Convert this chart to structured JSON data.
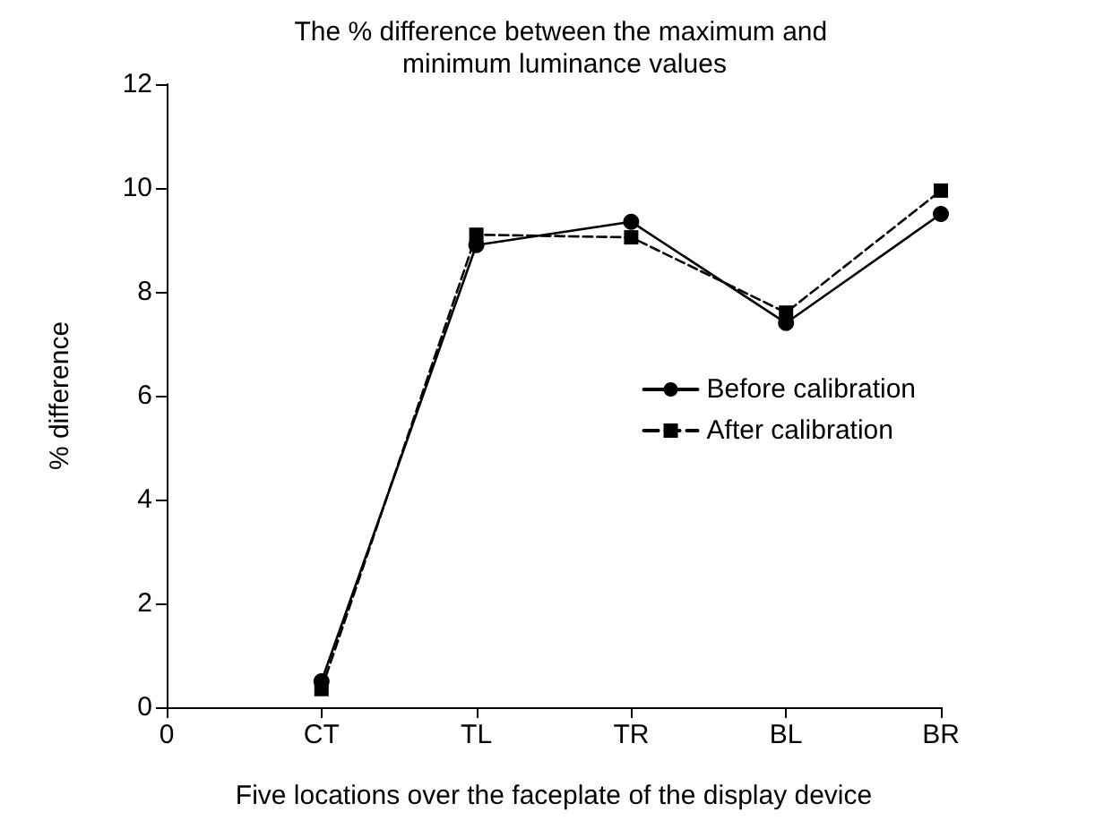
{
  "chart_data": {
    "type": "line",
    "title": "The % difference between the maximum and minimum luminance values",
    "xlabel": "Five locations over the faceplate of the display device",
    "ylabel": "% difference",
    "categories": [
      "0",
      "CT",
      "TL",
      "TR",
      "BL",
      "BR"
    ],
    "series": [
      {
        "name": "Before calibration",
        "color": "#000000",
        "marker": "circle",
        "line_style": "solid",
        "values": [
          null,
          0.5,
          8.9,
          9.35,
          7.4,
          9.5
        ]
      },
      {
        "name": "After calibration",
        "color": "#000000",
        "marker": "square",
        "line_style": "dashed",
        "values": [
          null,
          0.35,
          9.1,
          9.05,
          7.6,
          9.95
        ]
      }
    ],
    "ylim": [
      0,
      12
    ],
    "yticks": [
      0,
      2,
      4,
      6,
      8,
      10,
      12
    ],
    "grid": false,
    "legend": "right"
  }
}
